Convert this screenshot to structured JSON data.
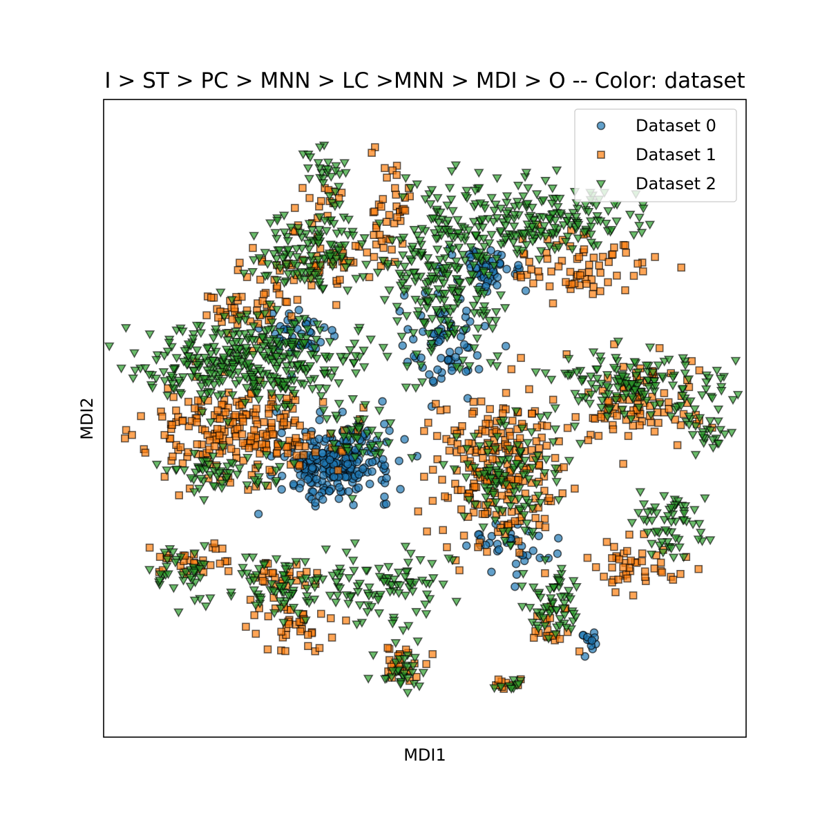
{
  "chart_data": {
    "type": "scatter",
    "title": "I > ST > PC > MNN > LC >MNN > MDI > O -- Color: dataset",
    "xlabel": "MDI1",
    "ylabel": "MDI2",
    "xlim": [
      0,
      100
    ],
    "ylim": [
      0,
      100
    ],
    "ticks": "none",
    "grid": false,
    "legend_position": "top-right",
    "series": [
      {
        "name": "Dataset 0",
        "marker": "circle",
        "color": "#1f77b4",
        "clusters": [
          {
            "cx": 36,
            "cy": 43,
            "rx": 8,
            "ry": 5,
            "n": 260
          },
          {
            "cx": 53,
            "cy": 62,
            "rx": 6,
            "ry": 7,
            "n": 70
          },
          {
            "cx": 60,
            "cy": 73,
            "rx": 6,
            "ry": 3,
            "n": 50
          },
          {
            "cx": 30,
            "cy": 63,
            "rx": 6,
            "ry": 4,
            "n": 40
          },
          {
            "cx": 64,
            "cy": 30,
            "rx": 6,
            "ry": 4,
            "n": 35
          },
          {
            "cx": 76,
            "cy": 15,
            "rx": 2,
            "ry": 2,
            "n": 12
          }
        ]
      },
      {
        "name": "Dataset 1",
        "marker": "square",
        "color": "#ff7f0e",
        "clusters": [
          {
            "cx": 21,
            "cy": 48,
            "rx": 13,
            "ry": 7,
            "n": 220
          },
          {
            "cx": 61,
            "cy": 42,
            "rx": 9,
            "ry": 11,
            "n": 220
          },
          {
            "cx": 83,
            "cy": 52,
            "rx": 10,
            "ry": 6,
            "n": 90
          },
          {
            "cx": 44,
            "cy": 82,
            "rx": 3,
            "ry": 8,
            "n": 45
          },
          {
            "cx": 75,
            "cy": 74,
            "rx": 10,
            "ry": 5,
            "n": 70
          },
          {
            "cx": 32,
            "cy": 74,
            "rx": 8,
            "ry": 5,
            "n": 50
          },
          {
            "cx": 22,
            "cy": 67,
            "rx": 6,
            "ry": 4,
            "n": 45
          },
          {
            "cx": 83,
            "cy": 27,
            "rx": 6,
            "ry": 4,
            "n": 45
          },
          {
            "cx": 14,
            "cy": 28,
            "rx": 6,
            "ry": 3,
            "n": 30
          },
          {
            "cx": 29,
            "cy": 18,
            "rx": 6,
            "ry": 4,
            "n": 40
          },
          {
            "cx": 46,
            "cy": 12,
            "rx": 4,
            "ry": 3,
            "n": 25
          },
          {
            "cx": 70,
            "cy": 17,
            "rx": 4,
            "ry": 3,
            "n": 20
          },
          {
            "cx": 27,
            "cy": 25,
            "rx": 6,
            "ry": 2,
            "n": 25
          },
          {
            "cx": 34,
            "cy": 84,
            "rx": 3,
            "ry": 3,
            "n": 15
          },
          {
            "cx": 63,
            "cy": 8,
            "rx": 3,
            "ry": 1,
            "n": 10
          }
        ]
      },
      {
        "name": "Dataset 2",
        "marker": "triangle-down",
        "color": "#2ca02c",
        "clusters": [
          {
            "cx": 24,
            "cy": 59,
            "rx": 16,
            "ry": 6,
            "n": 360
          },
          {
            "cx": 53,
            "cy": 72,
            "rx": 8,
            "ry": 12,
            "n": 220
          },
          {
            "cx": 66,
            "cy": 81,
            "rx": 14,
            "ry": 5,
            "n": 200
          },
          {
            "cx": 82,
            "cy": 55,
            "rx": 13,
            "ry": 5,
            "n": 150
          },
          {
            "cx": 63,
            "cy": 40,
            "rx": 7,
            "ry": 9,
            "n": 110
          },
          {
            "cx": 31,
            "cy": 76,
            "rx": 8,
            "ry": 6,
            "n": 120
          },
          {
            "cx": 88,
            "cy": 33,
            "rx": 5,
            "ry": 5,
            "n": 60
          },
          {
            "cx": 70,
            "cy": 20,
            "rx": 4,
            "ry": 5,
            "n": 60
          },
          {
            "cx": 12,
            "cy": 26,
            "rx": 5,
            "ry": 4,
            "n": 40
          },
          {
            "cx": 28,
            "cy": 23,
            "rx": 8,
            "ry": 4,
            "n": 70
          },
          {
            "cx": 44,
            "cy": 24,
            "rx": 8,
            "ry": 6,
            "n": 90
          },
          {
            "cx": 46,
            "cy": 10,
            "rx": 3,
            "ry": 3,
            "n": 30
          },
          {
            "cx": 63,
            "cy": 8,
            "rx": 2,
            "ry": 1,
            "n": 10
          },
          {
            "cx": 19,
            "cy": 42,
            "rx": 8,
            "ry": 3,
            "n": 60
          },
          {
            "cx": 40,
            "cy": 47,
            "rx": 5,
            "ry": 6,
            "n": 40
          },
          {
            "cx": 35,
            "cy": 88,
            "rx": 3,
            "ry": 4,
            "n": 30
          },
          {
            "cx": 93,
            "cy": 48,
            "rx": 3,
            "ry": 3,
            "n": 25
          }
        ]
      }
    ]
  }
}
